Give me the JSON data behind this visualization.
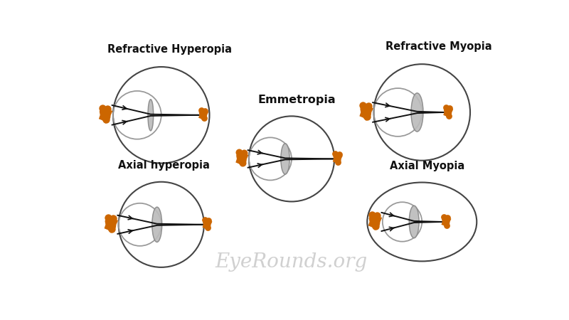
{
  "background_color": "#ffffff",
  "watermark": "EyeRounds.org",
  "watermark_color": "#c8c8c8",
  "labels": {
    "refractive_hyperopia": "Refractive Hyperopia",
    "refractive_myopia": "Refractive Myopia",
    "emmetropia": "Emmetropia",
    "axial_hyperopia": "Axial hyperopia",
    "axial_myopia": "Axial Myopia"
  },
  "eye_color": "#444444",
  "front_circle_color": "#999999",
  "lens_face_color": "#bbbbbb",
  "lens_edge_color": "#888888",
  "line_color": "#111111",
  "obj_color": "#cc6600",
  "label_fontsize": 10.5,
  "watermark_fontsize": 20,
  "lw": 1.5
}
